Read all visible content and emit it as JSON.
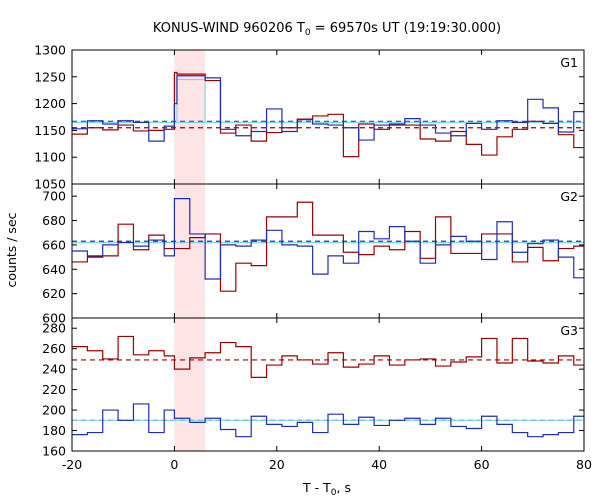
{
  "title": {
    "prefix": "KONUS-WIND 960206 T",
    "sub": "0",
    "suffix": " = 69570s UT (19:19:30.000)"
  },
  "axes": {
    "ylabel": "counts / sec",
    "xlabel": {
      "prefix": "T - T",
      "sub": "0",
      "suffix": ", s"
    }
  },
  "colors": {
    "red_series": "#990000",
    "blue_series": "#1f2db5",
    "fit_line": "#7fd8e8",
    "highlight": "#ffe4e6",
    "axis": "#000000"
  },
  "chart_data": {
    "type": "line",
    "step": "histogram",
    "x_range": [
      -20,
      80
    ],
    "x_ticks": [
      -20,
      0,
      20,
      40,
      60,
      80
    ],
    "highlight_interval": [
      0,
      6
    ],
    "panels": [
      {
        "label": "G1",
        "ylim": [
          1050,
          1300
        ],
        "y_ticks": [
          1050,
          1100,
          1150,
          1200,
          1250,
          1300
        ],
        "bin_edges": [
          -20,
          -17,
          -14,
          -11,
          -8,
          -5,
          -2,
          0,
          0.5,
          6,
          9,
          12,
          15,
          18,
          21,
          24,
          27,
          30,
          33,
          36,
          39,
          42,
          45,
          48,
          51,
          54,
          57,
          60,
          63,
          66,
          69,
          72,
          75,
          78,
          80
        ],
        "series": [
          {
            "color_key": "red_series",
            "values": [
              1143,
              1155,
              1151,
              1160,
              1149,
              1150,
              1152,
              1258,
              1255,
              1243,
              1145,
              1160,
              1130,
              1146,
              1155,
              1171,
              1177,
              1180,
              1101,
              1162,
              1152,
              1160,
              1160,
              1134,
              1130,
              1148,
              1124,
              1104,
              1138,
              1152,
              1167,
              1163,
              1142,
              1118
            ]
          },
          {
            "color_key": "blue_series",
            "values": [
              1153,
              1168,
              1162,
              1168,
              1165,
              1130,
              1158,
              1200,
              1252,
              1248,
              1152,
              1140,
              1148,
              1190,
              1148,
              1170,
              1162,
              1160,
              1155,
              1132,
              1160,
              1162,
              1172,
              1160,
              1145,
              1140,
              1163,
              1152,
              1168,
              1165,
              1208,
              1192,
              1147,
              1185
            ]
          }
        ],
        "baselines": [
          {
            "color_key": "blue_series",
            "value": 1167,
            "style": "dashed"
          },
          {
            "color_key": "red_series",
            "value": 1155,
            "style": "dashed"
          },
          {
            "color_key": "fit_line",
            "value": 1165,
            "style": "solid"
          }
        ],
        "fit_excess": {
          "x_start": 0.5,
          "x_end": 6,
          "value": 1245
        }
      },
      {
        "label": "G2",
        "ylim": [
          600,
          710
        ],
        "y_ticks": [
          600,
          620,
          640,
          660,
          680,
          700
        ],
        "bin_edges": [
          -20,
          -17,
          -14,
          -11,
          -8,
          -5,
          -2,
          0,
          3,
          6,
          9,
          12,
          15,
          18,
          21,
          24,
          27,
          30,
          33,
          36,
          39,
          42,
          45,
          48,
          51,
          54,
          57,
          60,
          63,
          66,
          69,
          72,
          75,
          78,
          80
        ],
        "series": [
          {
            "color_key": "red_series",
            "values": [
              646,
              650,
              651,
              677,
              656,
              668,
              657,
              657,
              666,
              669,
              622,
              645,
              643,
              683,
              683,
              695,
              668,
              668,
              654,
              652,
              659,
              656,
              671,
              649,
              683,
              653,
              653,
              669,
              669,
              646,
              658,
              647,
              657,
              659
            ]
          },
          {
            "color_key": "blue_series",
            "values": [
              655,
              651,
              660,
              662,
              659,
              664,
              651,
              698,
              669,
              632,
              660,
              659,
              664,
              672,
              660,
              659,
              636,
              651,
              645,
              671,
              665,
              675,
              663,
              645,
              660,
              667,
              663,
              648,
              679,
              654,
              661,
              664,
              650,
              633
            ]
          }
        ],
        "baselines": [
          {
            "color_key": "blue_series",
            "value": 663,
            "style": "dashed"
          },
          {
            "color_key": "red_series",
            "value": 662,
            "style": "dashed"
          },
          {
            "color_key": "fit_line",
            "value": 662,
            "style": "solid"
          }
        ]
      },
      {
        "label": "G3",
        "ylim": [
          160,
          290
        ],
        "y_ticks": [
          160,
          180,
          200,
          220,
          240,
          260,
          280
        ],
        "bin_edges": [
          -20,
          -17,
          -14,
          -11,
          -8,
          -5,
          -2,
          0,
          3,
          6,
          9,
          12,
          15,
          18,
          21,
          24,
          27,
          30,
          33,
          36,
          39,
          42,
          45,
          48,
          51,
          54,
          57,
          60,
          63,
          66,
          69,
          72,
          75,
          78,
          80
        ],
        "series": [
          {
            "color_key": "red_series",
            "values": [
              262,
              258,
              250,
              272,
              254,
              258,
              253,
              240,
              251,
              256,
              266,
              262,
              232,
              244,
              253,
              249,
              245,
              256,
              242,
              245,
              253,
              244,
              249,
              250,
              243,
              247,
              252,
              270,
              246,
              270,
              248,
              246,
              253,
              244
            ]
          },
          {
            "color_key": "blue_series",
            "values": [
              176,
              178,
              200,
              190,
              206,
              178,
              200,
              192,
              188,
              192,
              181,
              174,
              194,
              186,
              184,
              188,
              178,
              196,
              186,
              193,
              185,
              190,
              192,
              186,
              192,
              184,
              182,
              194,
              186,
              178,
              174,
              176,
              178,
              194
            ]
          }
        ],
        "baselines": [
          {
            "color_key": "red_series",
            "value": 249,
            "style": "dashed"
          },
          {
            "color_key": "blue_series",
            "value": 190,
            "style": "dashed"
          },
          {
            "color_key": "fit_line",
            "value": 190,
            "style": "solid"
          }
        ]
      }
    ]
  }
}
